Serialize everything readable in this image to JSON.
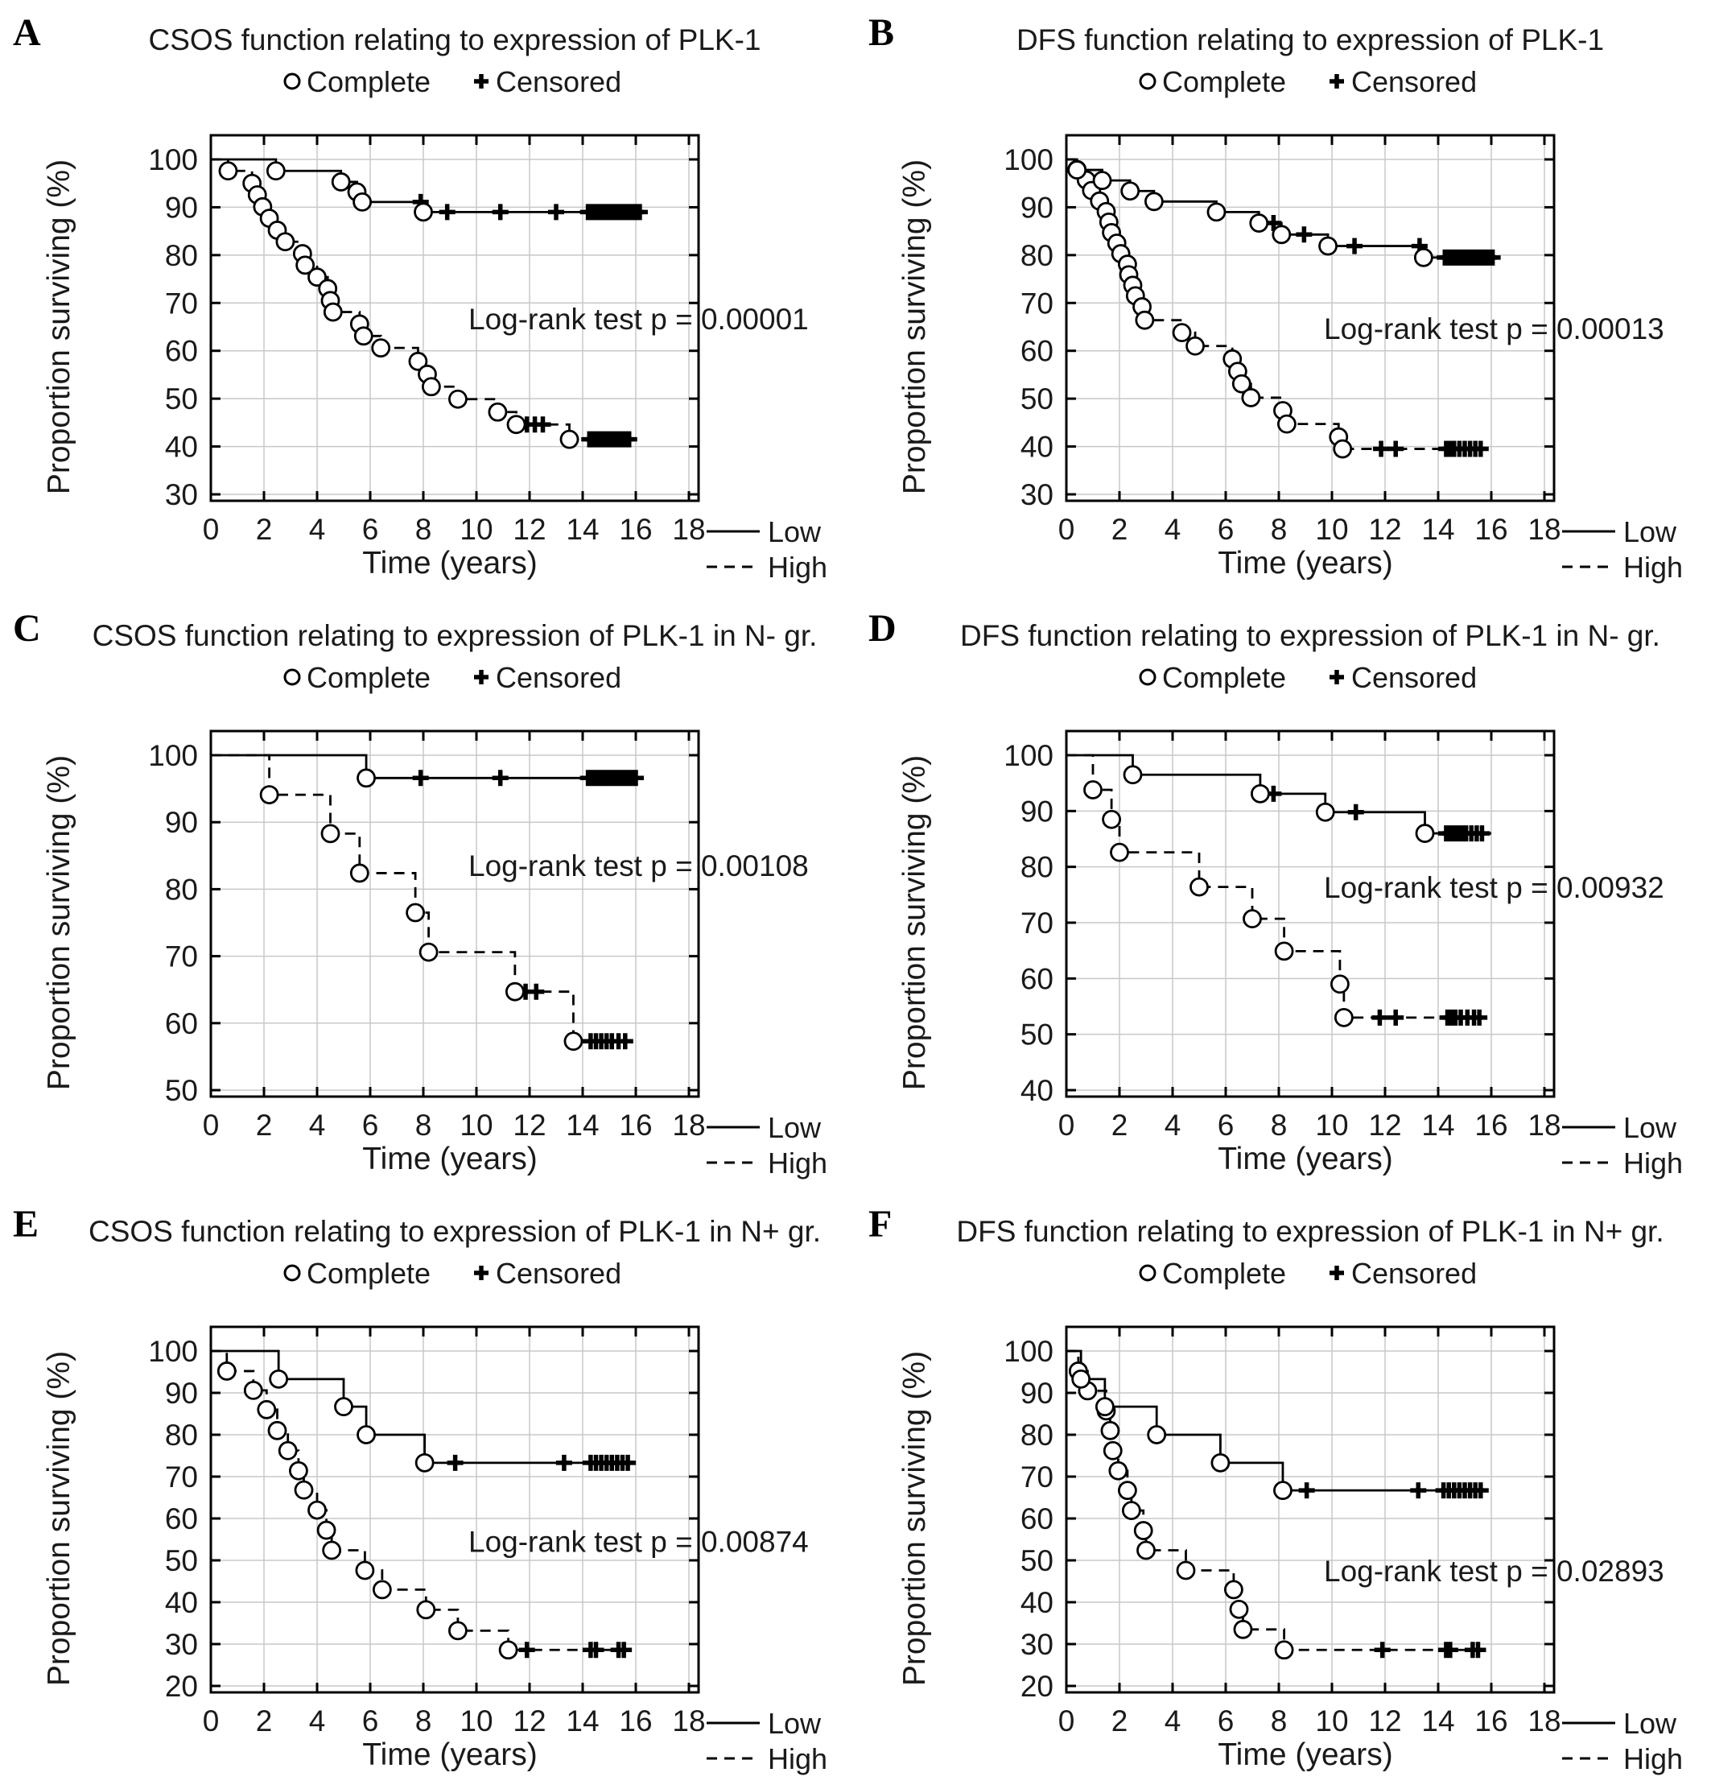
{
  "figure": {
    "legend": {
      "complete": "Complete",
      "censored": "Censored"
    },
    "series_legend": {
      "low": "Low",
      "high": "High"
    },
    "axes": {
      "x": "Time (years)",
      "y": "Proportion surviving (%)"
    },
    "colors": {
      "ink": "#000000",
      "grid": "#c8c8c8",
      "background": "#ffffff"
    }
  },
  "chart_data": [
    {
      "type": "km-step",
      "panel": "A",
      "title": "CSOS function relating to expression of PLK-1",
      "p_label": "Log-rank test p = 0.00001",
      "xlabel": "Time (years)",
      "ylabel": "Proportion surviving (%)",
      "xticks": [
        0,
        2,
        4,
        6,
        8,
        10,
        12,
        14,
        16,
        18
      ],
      "ylim": [
        30,
        100
      ],
      "yticks": [
        30,
        40,
        50,
        60,
        70,
        80,
        90,
        100
      ],
      "series": [
        {
          "name": "Low",
          "style": "solid",
          "start": 100,
          "events": [
            [
              2.45,
              97.6
            ],
            [
              4.9,
              95.3
            ],
            [
              5.5,
              93.2
            ],
            [
              5.7,
              91.1
            ],
            [
              8.0,
              89.0
            ]
          ],
          "censors": [
            7.9,
            8.9,
            10.9,
            13.0,
            14.2,
            14.35,
            14.5,
            14.65,
            14.8,
            14.95,
            15.1,
            15.25,
            15.4,
            15.55,
            15.7,
            15.85,
            16.0,
            16.15
          ],
          "end_x": 16.3
        },
        {
          "name": "High",
          "style": "dashed",
          "start": 100,
          "events": [
            [
              0.65,
              97.6
            ],
            [
              1.55,
              95.0
            ],
            [
              1.75,
              92.6
            ],
            [
              1.95,
              90.1
            ],
            [
              2.2,
              87.7
            ],
            [
              2.5,
              85.2
            ],
            [
              2.8,
              82.8
            ],
            [
              3.45,
              80.3
            ],
            [
              3.55,
              77.9
            ],
            [
              4.0,
              75.4
            ],
            [
              4.4,
              73.0
            ],
            [
              4.5,
              70.5
            ],
            [
              4.6,
              68.1
            ],
            [
              5.6,
              65.6
            ],
            [
              5.75,
              63.1
            ],
            [
              6.4,
              60.6
            ],
            [
              7.8,
              57.8
            ],
            [
              8.15,
              55.1
            ],
            [
              8.3,
              52.5
            ],
            [
              9.3,
              49.9
            ],
            [
              10.8,
              47.2
            ],
            [
              11.5,
              44.6
            ],
            [
              13.5,
              41.5
            ]
          ],
          "censors": [
            11.9,
            12.2,
            12.5,
            14.25,
            14.4,
            14.55,
            14.7,
            14.85,
            15.0,
            15.15,
            15.3,
            15.45,
            15.6,
            15.75
          ],
          "end_x": 15.95
        }
      ]
    },
    {
      "type": "km-step",
      "panel": "B",
      "title": "DFS function relating to expression of PLK-1",
      "p_label": "Log-rank test p = 0.00013",
      "xlabel": "Time (years)",
      "ylabel": "Proportion surviving (%)",
      "xticks": [
        0,
        2,
        4,
        6,
        8,
        10,
        12,
        14,
        16,
        18
      ],
      "ylim": [
        30,
        100
      ],
      "yticks": [
        30,
        40,
        50,
        60,
        70,
        80,
        90,
        100
      ],
      "series": [
        {
          "name": "Low",
          "style": "solid",
          "start": 100,
          "events": [
            [
              0.4,
              97.8
            ],
            [
              1.35,
              95.6
            ],
            [
              2.4,
              93.4
            ],
            [
              3.3,
              91.2
            ],
            [
              5.65,
              89.0
            ],
            [
              7.25,
              86.7
            ],
            [
              8.1,
              84.3
            ],
            [
              9.85,
              81.9
            ],
            [
              13.45,
              79.5
            ]
          ],
          "censors": [
            7.8,
            8.95,
            10.85,
            13.3,
            14.25,
            14.4,
            14.55,
            14.7,
            14.85,
            15.0,
            15.15,
            15.3,
            15.45,
            15.6,
            15.75,
            15.9,
            16.05
          ],
          "end_x": 16.2
        },
        {
          "name": "High",
          "style": "dashed",
          "start": 100,
          "events": [
            [
              0.4,
              97.9
            ],
            [
              0.75,
              95.7
            ],
            [
              0.95,
              93.5
            ],
            [
              1.25,
              91.3
            ],
            [
              1.5,
              89.1
            ],
            [
              1.6,
              86.9
            ],
            [
              1.7,
              84.7
            ],
            [
              1.9,
              82.5
            ],
            [
              2.05,
              80.3
            ],
            [
              2.3,
              78.1
            ],
            [
              2.35,
              75.9
            ],
            [
              2.5,
              73.7
            ],
            [
              2.6,
              71.5
            ],
            [
              2.85,
              69.2
            ],
            [
              2.95,
              66.4
            ],
            [
              4.35,
              63.8
            ],
            [
              4.85,
              61.0
            ],
            [
              6.25,
              58.3
            ],
            [
              6.45,
              55.7
            ],
            [
              6.6,
              53.1
            ],
            [
              6.95,
              50.2
            ],
            [
              8.15,
              47.5
            ],
            [
              8.3,
              44.7
            ],
            [
              10.25,
              42.0
            ],
            [
              10.4,
              39.5
            ]
          ],
          "censors": [
            11.85,
            12.4,
            14.3,
            14.45,
            14.6,
            14.8,
            15.0,
            15.2,
            15.4,
            15.6
          ],
          "end_x": 15.85
        }
      ]
    },
    {
      "type": "km-step",
      "panel": "C",
      "title": "CSOS function relating to expression of PLK-1 in N- gr.",
      "p_label": "Log-rank test p = 0.00108",
      "xlabel": "Time (years)",
      "ylabel": "Proportion surviving (%)",
      "xticks": [
        0,
        2,
        4,
        6,
        8,
        10,
        12,
        14,
        16,
        18
      ],
      "ylim": [
        50,
        100
      ],
      "yticks": [
        50,
        60,
        70,
        80,
        90,
        100
      ],
      "series": [
        {
          "name": "Low",
          "style": "solid",
          "start": 100,
          "events": [
            [
              5.85,
              96.6
            ]
          ],
          "censors": [
            7.9,
            10.9,
            14.2,
            14.35,
            14.5,
            14.65,
            14.8,
            14.95,
            15.1,
            15.25,
            15.4,
            15.55,
            15.7,
            15.85,
            16.0
          ],
          "end_x": 16.25
        },
        {
          "name": "High",
          "style": "dashed",
          "start": 100,
          "events": [
            [
              2.2,
              94.1
            ],
            [
              4.5,
              88.3
            ],
            [
              5.6,
              82.4
            ],
            [
              7.7,
              76.5
            ],
            [
              8.2,
              70.6
            ],
            [
              11.45,
              64.7
            ],
            [
              13.65,
              57.3
            ]
          ],
          "censors": [
            11.85,
            12.25,
            14.3,
            14.5,
            14.7,
            14.9,
            15.1,
            15.35,
            15.6
          ],
          "end_x": 15.85
        }
      ]
    },
    {
      "type": "km-step",
      "panel": "D",
      "title": "DFS function relating to expression of PLK-1 in N- gr.",
      "p_label": "Log-rank test p = 0.00932",
      "xlabel": "Time (years)",
      "ylabel": "Proportion surviving (%)",
      "xticks": [
        0,
        2,
        4,
        6,
        8,
        10,
        12,
        14,
        16,
        18
      ],
      "ylim": [
        40,
        100
      ],
      "yticks": [
        40,
        50,
        60,
        70,
        80,
        90,
        100
      ],
      "series": [
        {
          "name": "Low",
          "style": "solid",
          "start": 100,
          "events": [
            [
              2.5,
              96.5
            ],
            [
              7.3,
              93.1
            ],
            [
              9.75,
              89.8
            ],
            [
              13.5,
              86.0
            ]
          ],
          "censors": [
            7.8,
            10.9,
            14.3,
            14.45,
            14.6,
            14.75,
            14.9,
            15.05,
            15.25,
            15.45,
            15.65
          ],
          "end_x": 16.0
        },
        {
          "name": "High",
          "style": "dashed",
          "start": 100,
          "events": [
            [
              1.0,
              93.8
            ],
            [
              1.7,
              88.5
            ],
            [
              2.0,
              82.6
            ],
            [
              5.0,
              76.4
            ],
            [
              7.0,
              70.7
            ],
            [
              8.2,
              64.9
            ],
            [
              10.3,
              59.0
            ],
            [
              10.45,
              53.0
            ]
          ],
          "censors": [
            11.8,
            12.4,
            14.35,
            14.5,
            14.65,
            14.85,
            15.1,
            15.35,
            15.55
          ],
          "end_x": 15.8
        }
      ]
    },
    {
      "type": "km-step",
      "panel": "E",
      "title": "CSOS function relating to expression of PLK-1 in N+ gr.",
      "p_label": "Log-rank test p = 0.00874",
      "xlabel": "Time (years)",
      "ylabel": "Proportion surviving (%)",
      "xticks": [
        0,
        2,
        4,
        6,
        8,
        10,
        12,
        14,
        16,
        18
      ],
      "ylim": [
        20,
        100
      ],
      "yticks": [
        20,
        30,
        40,
        50,
        60,
        70,
        80,
        90,
        100
      ],
      "series": [
        {
          "name": "Low",
          "style": "solid",
          "start": 100,
          "events": [
            [
              2.55,
              93.3
            ],
            [
              5.0,
              86.7
            ],
            [
              5.85,
              80.0
            ],
            [
              8.05,
              73.3
            ]
          ],
          "censors": [
            9.2,
            13.3,
            14.3,
            14.5,
            14.7,
            14.9,
            15.1,
            15.3,
            15.5,
            15.7
          ],
          "end_x": 15.9
        },
        {
          "name": "High",
          "style": "dashed",
          "start": 100,
          "events": [
            [
              0.6,
              95.2
            ],
            [
              1.6,
              90.6
            ],
            [
              2.1,
              86.0
            ],
            [
              2.5,
              81.0
            ],
            [
              2.9,
              76.2
            ],
            [
              3.3,
              71.4
            ],
            [
              3.5,
              66.8
            ],
            [
              4.0,
              62.0
            ],
            [
              4.35,
              57.2
            ],
            [
              4.55,
              52.4
            ],
            [
              5.8,
              47.6
            ],
            [
              6.45,
              43.0
            ],
            [
              8.1,
              38.2
            ],
            [
              9.3,
              33.2
            ],
            [
              11.2,
              28.6
            ]
          ],
          "censors": [
            11.9,
            14.3,
            14.5,
            15.35,
            15.55
          ],
          "end_x": 15.8
        }
      ]
    },
    {
      "type": "km-step",
      "panel": "F",
      "title": "DFS function relating to expression of PLK-1 in N+ gr.",
      "p_label": "Log-rank test p = 0.02893",
      "xlabel": "Time (years)",
      "ylabel": "Proportion surviving (%)",
      "xticks": [
        0,
        2,
        4,
        6,
        8,
        10,
        12,
        14,
        16,
        18
      ],
      "ylim": [
        20,
        100
      ],
      "yticks": [
        20,
        30,
        40,
        50,
        60,
        70,
        80,
        90,
        100
      ],
      "series": [
        {
          "name": "Low",
          "style": "solid",
          "start": 100,
          "events": [
            [
              0.55,
              93.3
            ],
            [
              1.45,
              86.7
            ],
            [
              3.4,
              80.0
            ],
            [
              5.8,
              73.3
            ],
            [
              8.15,
              66.7
            ]
          ],
          "censors": [
            9.05,
            13.25,
            14.2,
            14.4,
            14.6,
            14.8,
            15.0,
            15.2,
            15.4,
            15.6
          ],
          "end_x": 15.8
        },
        {
          "name": "High",
          "style": "dashed",
          "start": 100,
          "events": [
            [
              0.45,
              95.2
            ],
            [
              0.8,
              90.5
            ],
            [
              1.5,
              85.7
            ],
            [
              1.65,
              81.0
            ],
            [
              1.75,
              76.2
            ],
            [
              1.95,
              71.4
            ],
            [
              2.3,
              66.7
            ],
            [
              2.45,
              61.9
            ],
            [
              2.9,
              57.1
            ],
            [
              3.0,
              52.4
            ],
            [
              4.5,
              47.6
            ],
            [
              6.3,
              43.0
            ],
            [
              6.5,
              38.3
            ],
            [
              6.65,
              33.5
            ],
            [
              8.2,
              28.6
            ]
          ],
          "censors": [
            11.9,
            14.3,
            14.45,
            15.3,
            15.5
          ],
          "end_x": 15.75
        }
      ]
    }
  ]
}
